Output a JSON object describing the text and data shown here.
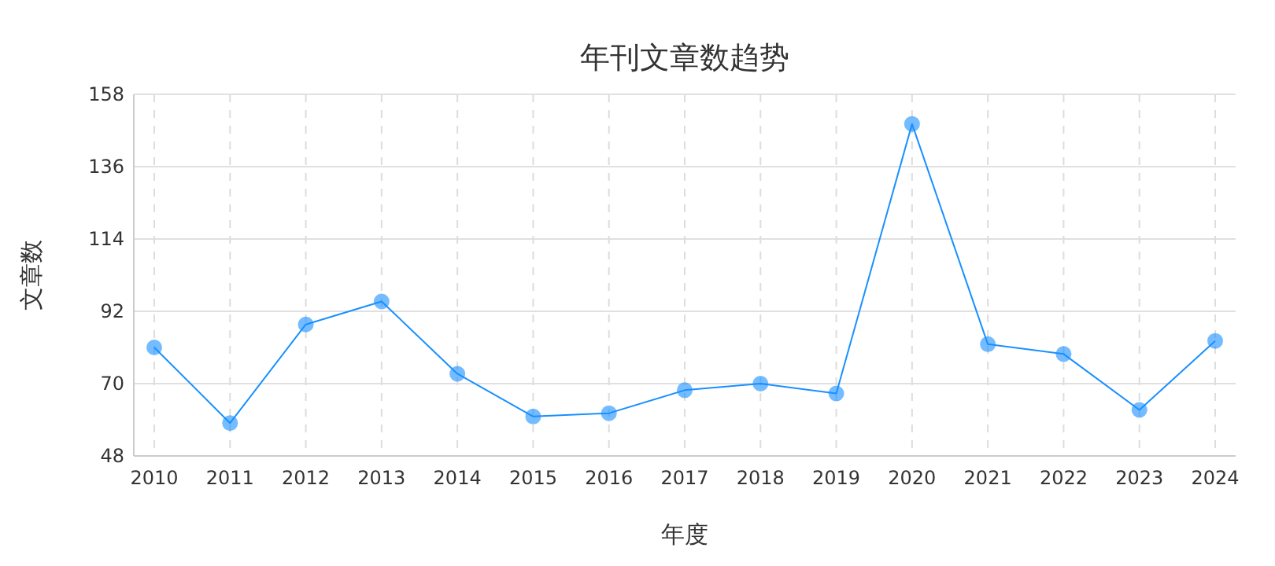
{
  "chart_data": {
    "type": "line",
    "title": "年刊文章数趋势",
    "xlabel": "年度",
    "ylabel": "文章数",
    "categories": [
      "2010",
      "2011",
      "2012",
      "2013",
      "2014",
      "2015",
      "2016",
      "2017",
      "2018",
      "2019",
      "2020",
      "2021",
      "2022",
      "2023",
      "2024"
    ],
    "series": [
      {
        "color": "#1890ff",
        "values": [
          81,
          58,
          88,
          95,
          73,
          60,
          61,
          68,
          70,
          67,
          149,
          82,
          79,
          62,
          83
        ]
      }
    ],
    "ylim": [
      48,
      158
    ],
    "yticks": [
      48,
      70,
      92,
      114,
      136,
      158
    ],
    "grid": true,
    "marker": "circle",
    "line_style": "solid"
  }
}
